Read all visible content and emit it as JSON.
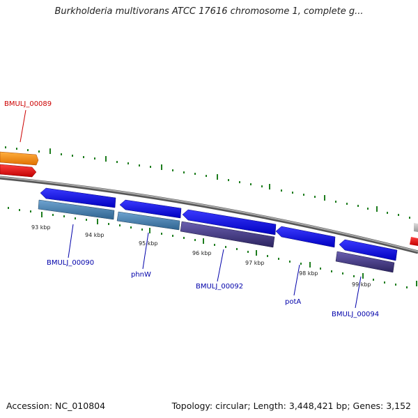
{
  "title": "Burkholderia multivorans ATCC 17616 chromosome 1, complete g...",
  "footer": {
    "accession": "Accession: NC_010804",
    "topology": "Topology: circular; Length: 3,448,421 bp; Genes: 3,152"
  },
  "ticks": [
    "93 kbp",
    "94 kbp",
    "95 kbp",
    "96 kbp",
    "97 kbp",
    "98 kbp",
    "99 kbp"
  ],
  "genes": [
    {
      "label": "BMULJ_00089",
      "color": "#cc0000"
    },
    {
      "label": "BMULJ_00090",
      "color": "#0000aa"
    },
    {
      "label": "phnW",
      "color": "#0000aa"
    },
    {
      "label": "BMULJ_00092",
      "color": "#0000aa"
    },
    {
      "label": "potA",
      "color": "#0000aa"
    },
    {
      "label": "BMULJ_00094",
      "color": "#0000aa"
    }
  ],
  "colors": {
    "backbone": "#808080",
    "cds_forward": "#ff8c00",
    "cds_reverse": "#0000ee",
    "gene_red": "#ee0000",
    "gene_steel": "#4682b4",
    "gene_purple": "#483d8b",
    "gc_ticks": "#1e7d1e"
  }
}
